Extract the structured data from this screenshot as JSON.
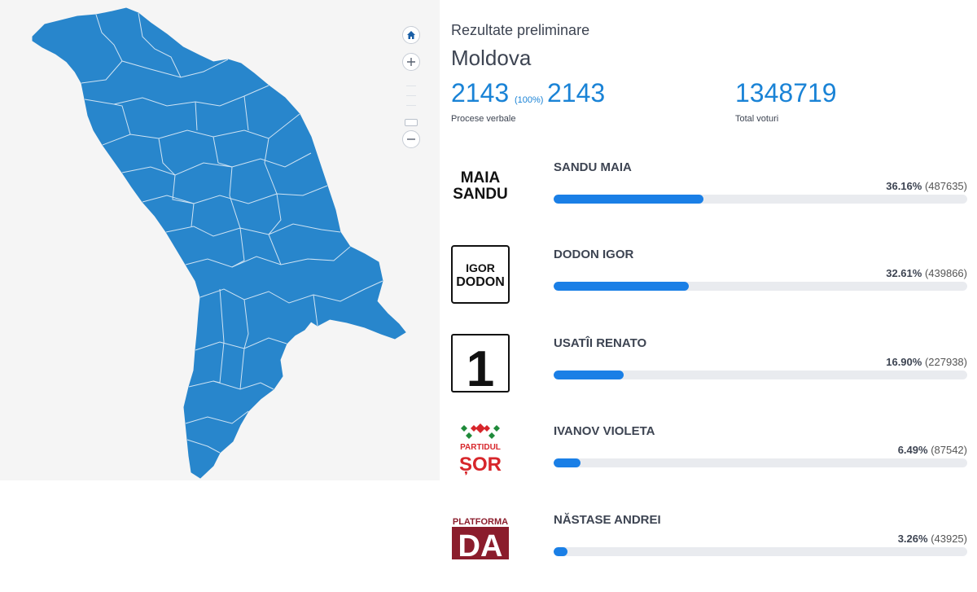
{
  "header": {
    "subtitle": "Rezultate preliminare",
    "region": "Moldova"
  },
  "stats": {
    "processed": "2143",
    "processed_pct": "(100%)",
    "total_protocols": "2143",
    "protocols_label": "Procese verbale",
    "total_votes": "1348719",
    "votes_label": "Total voturi"
  },
  "map": {
    "fill_color": "#2886cc",
    "border_color": "#cfe3f3",
    "controls": [
      "home-icon",
      "plus-icon",
      "minus-icon"
    ]
  },
  "candidates": [
    {
      "name": "SANDU MAIA",
      "pct_label": "36.16%",
      "votes_label": "(487635)",
      "pct": 36.16,
      "logo": {
        "type": "text",
        "lines": [
          "MAIA",
          "SANDU"
        ]
      }
    },
    {
      "name": "DODON IGOR",
      "pct_label": "32.61%",
      "votes_label": "(439866)",
      "pct": 32.61,
      "logo": {
        "type": "boxed",
        "lines": [
          "IGOR",
          "DODON"
        ]
      }
    },
    {
      "name": "USATÎI RENATO",
      "pct_label": "16.90%",
      "votes_label": "(227938)",
      "pct": 16.9,
      "logo": {
        "type": "number",
        "text": "1"
      }
    },
    {
      "name": "IVANOV VIOLETA",
      "pct_label": "6.49%",
      "votes_label": "(87542)",
      "pct": 6.49,
      "logo": {
        "type": "sor",
        "lines": [
          "PARTIDUL",
          "ȘOR"
        ]
      }
    },
    {
      "name": "NĂSTASE ANDREI",
      "pct_label": "3.26%",
      "votes_label": "(43925)",
      "pct": 3.26,
      "logo": {
        "type": "da",
        "lines": [
          "PLATFORMA",
          "DA"
        ]
      }
    }
  ],
  "colors": {
    "accent": "#1a83d6",
    "bar_fill": "#1a7fe6",
    "bar_track": "#e9ebef",
    "sor_red": "#d7262b",
    "sor_green": "#1f8a3a",
    "da_red": "#8b1d2c"
  }
}
